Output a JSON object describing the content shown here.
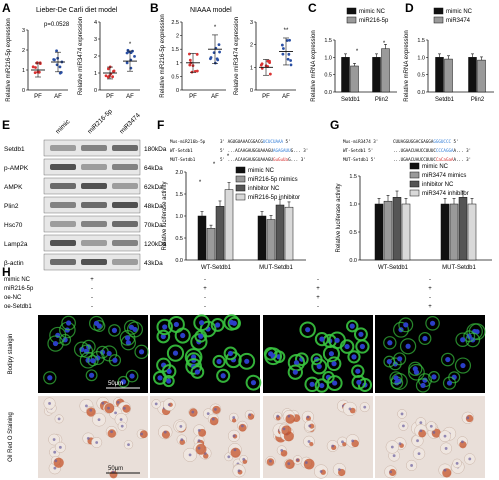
{
  "panels": {
    "A": {
      "letter": "A",
      "title": "Lieber-De Carli diet model",
      "pvalue": "p=0.0528",
      "y1": "Relative miR216-5p expression",
      "y2": "Relative miR3474 expression",
      "groups": [
        "PF",
        "AF"
      ],
      "sig2": "*"
    },
    "B": {
      "letter": "B",
      "title": "NIAAA model",
      "y1": "Relative miR216-5p expression",
      "y2": "Relative miR3474 expression",
      "groups": [
        "PF",
        "AF"
      ],
      "sig1": "*",
      "sig2": "**"
    },
    "C": {
      "letter": "C",
      "ylabel": "Relative mRNA expression",
      "legend": [
        "mimic NC",
        "miR216-5p"
      ],
      "genes": [
        "Setdb1",
        "Plin2"
      ],
      "sig": [
        "*",
        "*"
      ]
    },
    "D": {
      "letter": "D",
      "ylabel": "Relative mRNA expression",
      "legend": [
        "mimic NC",
        "miR3474"
      ],
      "genes": [
        "Setdb1",
        "Plin2"
      ]
    },
    "E": {
      "letter": "E",
      "lanes": [
        "mimic",
        "miR216-5p",
        "miR3474"
      ],
      "rows": [
        {
          "name": "Setdb1",
          "kda": "180kDa"
        },
        {
          "name": "p-AMPK",
          "kda": "64kDa"
        },
        {
          "name": "AMPK",
          "kda": "62kDa"
        },
        {
          "name": "Plin2",
          "kda": "48kDa"
        },
        {
          "name": "Hsc70",
          "kda": "70kDa"
        },
        {
          "name": "Lamp2a",
          "kda": "120kDa"
        },
        {
          "name": "β-actin",
          "kda": "43kDa"
        }
      ]
    },
    "F": {
      "letter": "F",
      "seq": [
        {
          "label": "Mus-miR216b-5p",
          "prefix": "3' AGUGUAAACGGACG",
          "hl": "UCUCUAAA",
          "suffix": " 5'"
        },
        {
          "label": "WT-Setdb1",
          "prefix": "5' ...ACAAGAUGGUAAAGU",
          "hl": "AGAGAUU",
          "suffix": "G... 3'"
        },
        {
          "label": "MUT-Setdb1",
          "prefix": "5' ...ACAAGAUGGUAAAGU",
          "hl": "GuGuUa",
          "suffix": "G... 3'"
        }
      ],
      "legend": [
        "mimic NC",
        "miR216-5p mimics",
        "inhibitor NC",
        "miR216-5p inhibitor"
      ],
      "ylabel": "Relative luciferase activity",
      "yticks": [
        "0.0",
        "0.5",
        "1.0",
        "1.5",
        "2.0"
      ],
      "groups": [
        "WT-Setdb1",
        "MUT-Setdb1"
      ],
      "sig": [
        "*",
        "*",
        "*"
      ]
    },
    "G": {
      "letter": "G",
      "seq": [
        {
          "label": "Mus-miR3474 3'",
          "prefix": "CUUAGGUGGACGAGGA",
          "hl": "GGGUCCC",
          "suffix": " 5'"
        },
        {
          "label": "WT-Setdb1 5'",
          "prefix": "...UGAACUAUCCUUUC",
          "hl": "CCCAGGA",
          "suffix": "A... 3'"
        },
        {
          "label": "MUT-Setdb1 5'",
          "prefix": "...UGAACUAUCCUUUC",
          "hl": "CaCaGaA",
          "suffix": "A... 3'"
        }
      ],
      "legend": [
        "mimic NC",
        "miR3474 mimics",
        "inhibitor NC",
        "miR3474 inhibitor"
      ],
      "ylabel": "Relative luciferase activity",
      "yticks": [
        "0.0",
        "0.5",
        "1.0",
        "1.5"
      ],
      "groups": [
        "WT-Setdb1",
        "MUT-Setdb1"
      ]
    },
    "H": {
      "letter": "H",
      "conditions": [
        {
          "name": "mimic NC",
          "vals": [
            "+",
            "-",
            "-",
            "-"
          ]
        },
        {
          "name": "miR216-5p",
          "vals": [
            "-",
            "+",
            "+",
            "+"
          ]
        },
        {
          "name": "oe-NC",
          "vals": [
            "-",
            "-",
            "+",
            "-"
          ]
        },
        {
          "name": "oe-Setdb1",
          "vals": [
            "-",
            "-",
            "-",
            "+"
          ]
        }
      ],
      "row_labels": [
        "Bodipy staingin",
        "Oil Red O Staining"
      ],
      "scale": "50μm"
    }
  },
  "chart_data": [
    {
      "type": "scatter",
      "panel": "A-left",
      "title": "Lieber-De Carli diet model",
      "ylabel": "Relative miR216-5p expression",
      "categories": [
        "PF",
        "AF"
      ],
      "means": [
        1.0,
        1.4
      ],
      "ylim": [
        0,
        3
      ],
      "yticks": [
        0,
        1,
        2,
        3
      ],
      "annotation": "p=0.0528"
    },
    {
      "type": "scatter",
      "panel": "A-right",
      "ylabel": "Relative miR3474 expression",
      "categories": [
        "PF",
        "AF"
      ],
      "means": [
        1.0,
        1.7
      ],
      "ylim": [
        0,
        4
      ],
      "yticks": [
        0,
        1,
        2,
        3,
        4
      ]
    },
    {
      "type": "scatter",
      "panel": "B-left",
      "title": "NIAAA model",
      "ylabel": "Relative miR216-5p expression",
      "categories": [
        "PF",
        "AF"
      ],
      "means": [
        1.0,
        1.5
      ],
      "ylim": [
        0,
        2.5
      ],
      "yticks": [
        0.0,
        0.5,
        1.0,
        1.5,
        2.0,
        2.5
      ]
    },
    {
      "type": "scatter",
      "panel": "B-right",
      "ylabel": "Relative miR3474 expression",
      "categories": [
        "PF",
        "AF"
      ],
      "means": [
        1.0,
        1.7
      ],
      "ylim": [
        0,
        3
      ],
      "yticks": [
        0,
        1,
        2,
        3
      ]
    },
    {
      "type": "bar",
      "panel": "C",
      "ylabel": "Relative mRNA expression",
      "categories": [
        "Setdb1",
        "Plin2"
      ],
      "series": [
        {
          "name": "mimic NC",
          "values": [
            1.0,
            1.0
          ]
        },
        {
          "name": "miR216-5p",
          "values": [
            0.75,
            1.25
          ]
        }
      ],
      "ylim": [
        0,
        1.5
      ],
      "yticks": [
        0.0,
        0.5,
        1.0,
        1.5
      ]
    },
    {
      "type": "bar",
      "panel": "D",
      "ylabel": "Relative mRNA expression",
      "categories": [
        "Setdb1",
        "Plin2"
      ],
      "series": [
        {
          "name": "mimic NC",
          "values": [
            1.0,
            1.0
          ]
        },
        {
          "name": "miR3474",
          "values": [
            0.95,
            0.92
          ]
        }
      ],
      "ylim": [
        0,
        1.5
      ],
      "yticks": [
        0.0,
        0.5,
        1.0,
        1.5
      ]
    },
    {
      "type": "bar",
      "panel": "F",
      "ylabel": "Relative luciferase activity",
      "categories": [
        "WT-Setdb1",
        "MUT-Setdb1"
      ],
      "series": [
        {
          "name": "mimic NC",
          "values": [
            1.0,
            1.0
          ]
        },
        {
          "name": "miR216-5p mimics",
          "values": [
            0.72,
            0.92
          ]
        },
        {
          "name": "inhibitor NC",
          "values": [
            1.22,
            1.25
          ]
        },
        {
          "name": "miR216-5p inhibitor",
          "values": [
            1.6,
            1.2
          ]
        }
      ],
      "ylim": [
        0,
        2.0
      ],
      "yticks": [
        0.0,
        0.5,
        1.0,
        1.5,
        2.0
      ]
    },
    {
      "type": "bar",
      "panel": "G",
      "ylabel": "Relative luciferase activity",
      "categories": [
        "WT-Setdb1",
        "MUT-Setdb1"
      ],
      "series": [
        {
          "name": "mimic NC",
          "values": [
            1.0,
            1.0
          ]
        },
        {
          "name": "miR3474 mimics",
          "values": [
            1.05,
            1.0
          ]
        },
        {
          "name": "inhibitor NC",
          "values": [
            1.12,
            1.12
          ]
        },
        {
          "name": "miR3474 inhibitor",
          "values": [
            1.0,
            1.0
          ]
        }
      ],
      "ylim": [
        0,
        1.5
      ],
      "yticks": [
        0.0,
        0.5,
        1.0,
        1.5
      ]
    }
  ],
  "colors": {
    "dotRed": "#d93232",
    "dotBlue": "#2a4fa3",
    "black": "#111111",
    "grey": "#9a9a9a",
    "darkGrey": "#555555",
    "light": "#d9d9d9",
    "seqBlue": "#2e7bd6",
    "seqRed": "#d42a2a",
    "fluorGreen": "#39c43f",
    "fluorBlue": "#2b3fc7"
  }
}
